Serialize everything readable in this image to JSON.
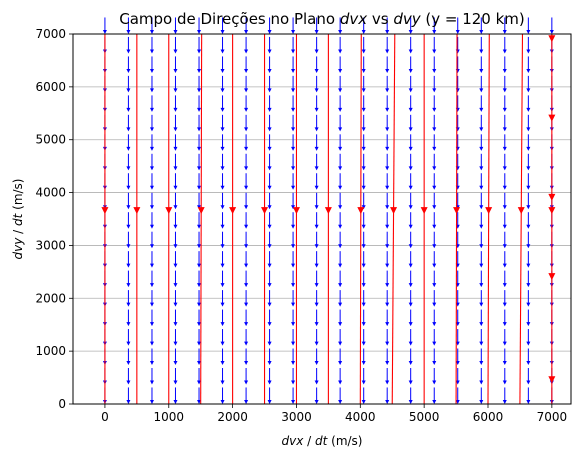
{
  "chart_data": {
    "type": "scatter",
    "title": "Campo de Direções no Plano dvx vs dvy (y = 120 km)",
    "title_parts": [
      {
        "text": "Campo de Direções no Plano ",
        "italic": false
      },
      {
        "text": "dvx",
        "italic": true
      },
      {
        "text": " vs ",
        "italic": false
      },
      {
        "text": "dvy",
        "italic": true
      },
      {
        "text": " (y = 120 km)",
        "italic": false
      }
    ],
    "xlabel": "dvx / dt (m/s)",
    "xlabel_parts": [
      {
        "text": "dvx",
        "italic": true
      },
      {
        "text": " / ",
        "italic": false
      },
      {
        "text": "dt",
        "italic": true
      },
      {
        "text": " (m/s)",
        "italic": false
      }
    ],
    "ylabel": "dvy / dt (m/s)",
    "ylabel_parts": [
      {
        "text": "dvy",
        "italic": true
      },
      {
        "text": " / ",
        "italic": false
      },
      {
        "text": "dt",
        "italic": true
      },
      {
        "text": " (m/s)",
        "italic": false
      }
    ],
    "xlim": [
      -500,
      7300
    ],
    "ylim": [
      0,
      7000
    ],
    "xticks": [
      0,
      1000,
      2000,
      3000,
      4000,
      5000,
      6000,
      7000
    ],
    "yticks": [
      0,
      1000,
      2000,
      3000,
      4000,
      5000,
      6000,
      7000
    ],
    "grid": true,
    "direction_field": {
      "color": "#0000ff",
      "x": [
        0,
        368,
        737,
        1105,
        1474,
        1842,
        2211,
        2579,
        2947,
        3316,
        3684,
        4053,
        4421,
        4789,
        5158,
        5526,
        5895,
        6263,
        6632,
        7000
      ],
      "y": [
        0,
        368,
        737,
        1105,
        1474,
        1842,
        2211,
        2579,
        2947,
        3316,
        3684,
        4053,
        4421,
        4789,
        5158,
        5526,
        5895,
        6263,
        6632,
        7000
      ],
      "direction": "down"
    },
    "trajectories": {
      "color": "#ff0000",
      "start_x": [
        0,
        500,
        1000,
        1500,
        2000,
        2500,
        3000,
        3500,
        4000,
        4500,
        5000,
        5500,
        6000,
        6500,
        7000
      ],
      "arrow_y": 3650,
      "x_drift_per_7000": [
        0,
        0,
        0,
        15,
        0,
        0,
        0,
        0,
        15,
        40,
        0,
        15,
        20,
        40,
        0
      ],
      "extra_arrows": [
        {
          "x": 7000,
          "y": 6900
        },
        {
          "x": 7000,
          "y": 5400
        },
        {
          "x": 7000,
          "y": 3900
        },
        {
          "x": 7000,
          "y": 2400
        },
        {
          "x": 7000,
          "y": 450
        }
      ]
    }
  }
}
